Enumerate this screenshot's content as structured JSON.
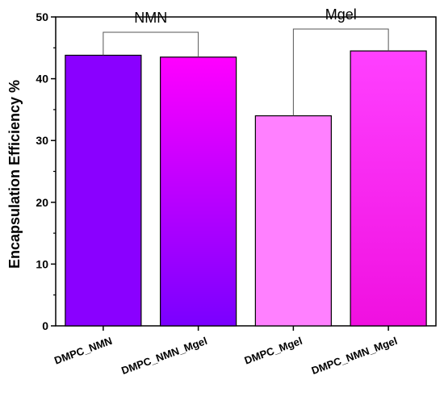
{
  "chart_data": {
    "type": "bar",
    "title": "",
    "xlabel": "",
    "ylabel": "Encapsulation Efficiency %",
    "ylim": [
      0,
      50
    ],
    "yticks": [
      0,
      10,
      20,
      30,
      40,
      50
    ],
    "categories": [
      "DMPC_NMN",
      "DMPC_NMN_Mgel",
      "DMPC_Mgel",
      "DMPC_NMN_Mgel"
    ],
    "values": [
      43.8,
      43.5,
      34.0,
      44.5
    ],
    "bar_colors": [
      [
        "#8a00ff",
        "#8a00ff"
      ],
      [
        "#ff00ff",
        "#7a00ff"
      ],
      [
        "#ff80ff",
        "#ff80ff"
      ],
      [
        "#ff40ff",
        "#f010e0"
      ]
    ],
    "groups": [
      {
        "label": "NMN",
        "bars": [
          0,
          1
        ]
      },
      {
        "label": "Mgel",
        "bars": [
          2,
          3
        ]
      }
    ],
    "grid": false,
    "legend": "none"
  }
}
